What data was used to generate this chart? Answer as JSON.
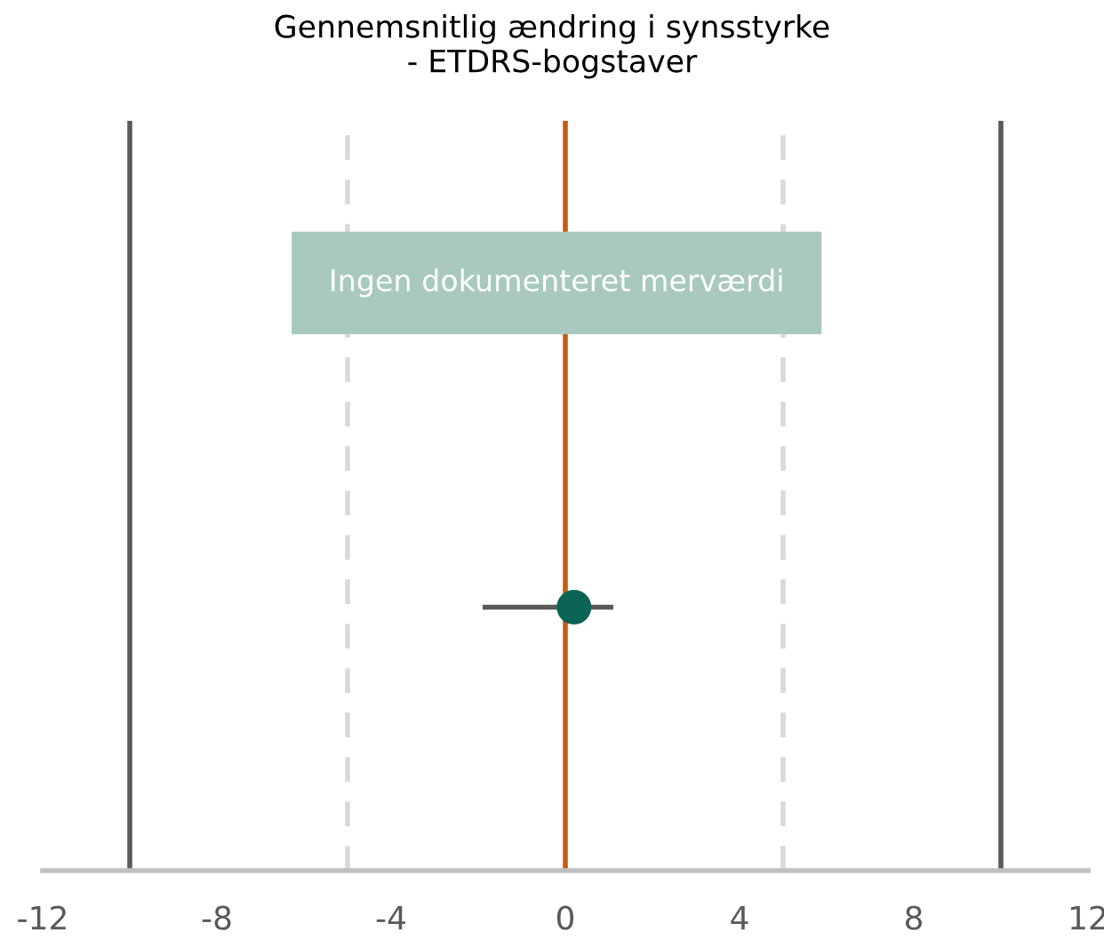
{
  "chart_data": {
    "type": "scatter",
    "orientation": "horizontal",
    "title": "Gennemsnitlig ændring i synsstyrke\n- ETDRS-bogstaver",
    "categories": [
      null
    ],
    "series": [
      {
        "color": "#0b6454",
        "values": [
          0.2
        ],
        "errors": [
          [
            -1.9,
            1.1
          ]
        ]
      }
    ],
    "xlim": [
      -12,
      12
    ],
    "xticks": [
      -12,
      -8,
      -4,
      0,
      4,
      8,
      12
    ],
    "tick_labels": "x",
    "grid": false,
    "legend": false,
    "marker": "circle",
    "ref_lines": [
      {
        "axis": "x",
        "value": -10,
        "color": "#595959",
        "line_style": "solid"
      },
      {
        "axis": "x",
        "value": -5,
        "color": "#d9d9d9",
        "line_style": "dashed"
      },
      {
        "axis": "x",
        "value": 5,
        "color": "#d9d9d9",
        "line_style": "dashed"
      },
      {
        "axis": "x",
        "value": 10,
        "color": "#595959",
        "line_style": "solid"
      },
      {
        "axis": "x",
        "value": 0,
        "color": "#c55a11",
        "line_style": "solid"
      }
    ],
    "annotations": [
      "Ingen dokumenteret merværdi"
    ]
  }
}
